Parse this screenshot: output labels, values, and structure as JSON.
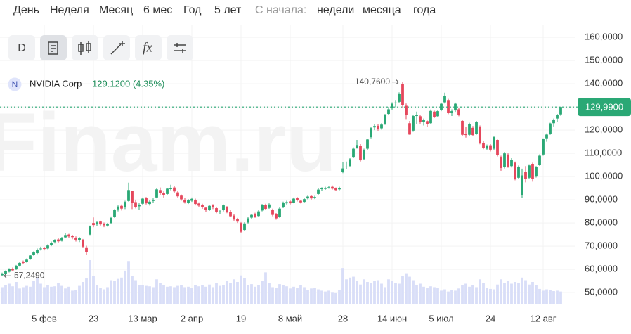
{
  "toolbar": {
    "periods": [
      "День",
      "Неделя",
      "Месяц",
      "6 мес",
      "Год",
      "5 лет"
    ],
    "since": "С начала:",
    "since_options": [
      "недели",
      "месяца",
      "года"
    ],
    "interval": "D"
  },
  "watermark": "Finam.ru",
  "chart_data": {
    "type": "candlestick",
    "instrument_icon": "N",
    "instrument": "NVIDIA Corp",
    "quote": "129.1200 (4.35%)",
    "up_color": "#2aa875",
    "down_color": "#e5475c",
    "volume_color": "#d9def8",
    "grid": true,
    "ylim": [
      45.2,
      165.5
    ],
    "yticks": [
      {
        "value": 50,
        "label": "50,0000"
      },
      {
        "value": 60,
        "label": "60,0000"
      },
      {
        "value": 70,
        "label": "70,0000"
      },
      {
        "value": 80,
        "label": "80,0000"
      },
      {
        "value": 90,
        "label": "90,0000"
      },
      {
        "value": 100,
        "label": "100,0000"
      },
      {
        "value": 110,
        "label": "110,0000"
      },
      {
        "value": 120,
        "label": "120,0000"
      },
      {
        "value": 130,
        "label": "130,0000"
      },
      {
        "value": 140,
        "label": "140,0000"
      },
      {
        "value": 150,
        "label": "150,0000"
      },
      {
        "value": 160,
        "label": "160,0000"
      }
    ],
    "xticks": [
      {
        "value": 12,
        "label": "5 фев"
      },
      {
        "value": 26,
        "label": "23"
      },
      {
        "value": 40,
        "label": "13 мар"
      },
      {
        "value": 54,
        "label": "2 апр"
      },
      {
        "value": 68,
        "label": "19"
      },
      {
        "value": 82,
        "label": "8 май"
      },
      {
        "value": 97,
        "label": "28"
      },
      {
        "value": 111,
        "label": "14 июн"
      },
      {
        "value": 125,
        "label": "5 июл"
      },
      {
        "value": 139,
        "label": "24"
      },
      {
        "value": 154,
        "label": "12 авг"
      }
    ],
    "last_label": "129,9900",
    "high_label": "140,7600",
    "low_label": "57,2490",
    "ohlc": [
      [
        57.5,
        58.6,
        57.249,
        58.0
      ],
      [
        58.2,
        59.6,
        57.9,
        59.2
      ],
      [
        59.0,
        60.5,
        58.7,
        60.1
      ],
      [
        60.3,
        60.8,
        59.2,
        59.6
      ],
      [
        60.0,
        61.9,
        59.8,
        61.5
      ],
      [
        61.6,
        63.2,
        61.2,
        62.8
      ],
      [
        63.1,
        63.8,
        62.4,
        63.0
      ],
      [
        63.3,
        64.7,
        62.9,
        64.2
      ],
      [
        64.5,
        66.4,
        64.1,
        66.0
      ],
      [
        66.2,
        67.8,
        65.9,
        67.3
      ],
      [
        67.0,
        69.0,
        66.6,
        68.5
      ],
      [
        68.7,
        69.8,
        68.1,
        69.0
      ],
      [
        69.3,
        69.7,
        68.2,
        68.8
      ],
      [
        69.0,
        70.8,
        68.7,
        70.3
      ],
      [
        70.4,
        72.0,
        70.0,
        71.5
      ],
      [
        71.8,
        73.0,
        71.2,
        72.6
      ],
      [
        72.9,
        73.4,
        71.6,
        72.1
      ],
      [
        72.3,
        74.0,
        72.0,
        73.5
      ],
      [
        73.8,
        75.5,
        73.4,
        74.8
      ],
      [
        75.0,
        75.3,
        73.7,
        74.2
      ],
      [
        74.4,
        74.9,
        73.0,
        73.9
      ],
      [
        73.6,
        74.2,
        72.0,
        72.8
      ],
      [
        72.5,
        73.9,
        71.8,
        73.4
      ],
      [
        72.8,
        73.1,
        69.2,
        69.8
      ],
      [
        69.5,
        70.2,
        66.2,
        67.5
      ],
      [
        75.0,
        78.9,
        74.8,
        78.5
      ],
      [
        80.0,
        82.4,
        78.2,
        79.1
      ],
      [
        79.4,
        80.9,
        78.6,
        80.3
      ],
      [
        80.6,
        81.0,
        78.9,
        79.4
      ],
      [
        79.7,
        80.2,
        78.2,
        79.0
      ],
      [
        78.9,
        80.0,
        78.4,
        79.5
      ],
      [
        80.0,
        82.8,
        79.6,
        82.2
      ],
      [
        82.5,
        86.0,
        82.2,
        85.6
      ],
      [
        85.9,
        87.6,
        85.0,
        87.1
      ],
      [
        87.4,
        88.0,
        85.4,
        86.2
      ],
      [
        86.7,
        89.6,
        86.0,
        89.1
      ],
      [
        89.5,
        97.4,
        89.2,
        94.2
      ],
      [
        93.8,
        94.0,
        86.0,
        88.6
      ],
      [
        89.0,
        90.1,
        86.3,
        87.0
      ],
      [
        87.2,
        88.5,
        85.8,
        87.9
      ],
      [
        88.3,
        91.0,
        87.8,
        90.5
      ],
      [
        90.8,
        91.2,
        88.0,
        88.5
      ],
      [
        88.2,
        89.8,
        87.5,
        89.2
      ],
      [
        89.5,
        90.6,
        88.6,
        90.0
      ],
      [
        91.0,
        95.0,
        90.6,
        94.5
      ],
      [
        94.2,
        95.3,
        92.2,
        92.8
      ],
      [
        93.0,
        93.6,
        91.0,
        92.0
      ],
      [
        92.5,
        95.2,
        92.1,
        94.8
      ],
      [
        94.6,
        96.5,
        94.1,
        95.0
      ],
      [
        95.3,
        95.8,
        93.0,
        93.6
      ],
      [
        93.2,
        93.8,
        91.0,
        91.5
      ],
      [
        91.8,
        92.3,
        89.6,
        90.2
      ],
      [
        90.0,
        90.9,
        88.4,
        89.0
      ],
      [
        88.8,
        90.3,
        88.2,
        89.8
      ],
      [
        89.6,
        91.0,
        89.1,
        90.4
      ],
      [
        90.0,
        90.5,
        87.6,
        88.2
      ],
      [
        88.4,
        88.9,
        86.8,
        87.5
      ],
      [
        87.8,
        88.3,
        86.1,
        86.9
      ],
      [
        86.6,
        87.0,
        84.8,
        85.5
      ],
      [
        85.8,
        87.9,
        85.2,
        87.4
      ],
      [
        87.6,
        88.1,
        86.0,
        86.7
      ],
      [
        86.4,
        86.9,
        84.2,
        84.9
      ],
      [
        84.6,
        85.6,
        84.0,
        85.0
      ],
      [
        85.5,
        88.0,
        85.0,
        87.6
      ],
      [
        87.0,
        87.3,
        84.2,
        84.7
      ],
      [
        84.8,
        85.5,
        82.5,
        82.9
      ],
      [
        83.2,
        83.8,
        81.0,
        81.5
      ],
      [
        81.8,
        82.2,
        80.0,
        80.6
      ],
      [
        80.0,
        80.4,
        75.6,
        76.2
      ],
      [
        77.0,
        80.3,
        76.6,
        79.8
      ],
      [
        80.2,
        82.6,
        79.8,
        82.0
      ],
      [
        82.3,
        84.0,
        81.7,
        83.5
      ],
      [
        84.0,
        84.4,
        82.2,
        82.7
      ],
      [
        83.0,
        85.6,
        82.6,
        85.0
      ],
      [
        85.4,
        88.2,
        85.0,
        87.7
      ],
      [
        87.9,
        88.3,
        85.6,
        86.1
      ],
      [
        86.5,
        88.5,
        86.1,
        88.0
      ],
      [
        85.8,
        86.2,
        82.9,
        83.5
      ],
      [
        83.8,
        84.3,
        81.4,
        82.0
      ],
      [
        82.5,
        86.8,
        82.2,
        86.2
      ],
      [
        86.8,
        89.2,
        86.4,
        88.7
      ],
      [
        88.5,
        89.6,
        88.0,
        89.0
      ],
      [
        89.3,
        89.7,
        88.0,
        88.5
      ],
      [
        88.8,
        91.0,
        88.5,
        90.5
      ],
      [
        90.7,
        91.2,
        89.3,
        89.8
      ],
      [
        89.6,
        90.0,
        88.4,
        88.9
      ],
      [
        89.1,
        90.8,
        88.8,
        90.3
      ],
      [
        90.6,
        91.8,
        90.2,
        91.4
      ],
      [
        91.6,
        92.0,
        90.1,
        90.6
      ],
      [
        90.7,
        91.7,
        90.3,
        91.2
      ],
      [
        92.5,
        95.0,
        92.2,
        94.4
      ],
      [
        94.6,
        95.4,
        94.0,
        94.9
      ],
      [
        94.7,
        95.6,
        94.3,
        95.2
      ],
      [
        95.0,
        96.0,
        94.8,
        95.4
      ],
      [
        95.6,
        96.2,
        94.4,
        94.8
      ],
      [
        94.9,
        95.3,
        93.8,
        94.2
      ],
      [
        94.5,
        95.6,
        94.1,
        95.0
      ],
      [
        102.0,
        106.3,
        101.5,
        103.5
      ],
      [
        104.0,
        106.5,
        103.2,
        104.3
      ],
      [
        104.6,
        108.0,
        104.0,
        107.5
      ],
      [
        108.5,
        112.6,
        108.0,
        112.0
      ],
      [
        112.4,
        115.8,
        112.0,
        113.6
      ],
      [
        113.2,
        114.0,
        106.5,
        107.0
      ],
      [
        107.5,
        112.0,
        107.0,
        111.4
      ],
      [
        112.0,
        116.4,
        111.5,
        116.0
      ],
      [
        117.0,
        121.5,
        116.5,
        120.9
      ],
      [
        121.2,
        122.5,
        120.0,
        121.8
      ],
      [
        121.9,
        122.6,
        119.8,
        120.5
      ],
      [
        120.8,
        123.0,
        120.2,
        122.4
      ],
      [
        122.8,
        127.0,
        122.3,
        126.6
      ],
      [
        127.0,
        130.0,
        126.5,
        129.0
      ],
      [
        129.4,
        132.0,
        128.8,
        131.4
      ],
      [
        131.8,
        133.0,
        129.9,
        131.9
      ],
      [
        132.2,
        136.3,
        131.8,
        135.6
      ],
      [
        139.8,
        140.76,
        129.5,
        130.8
      ],
      [
        130.5,
        131.5,
        124.8,
        126.6
      ],
      [
        123.0,
        124.0,
        118.0,
        118.1
      ],
      [
        119.8,
        126.5,
        119.3,
        126.1
      ],
      [
        126.2,
        128.0,
        122.6,
        126.4
      ],
      [
        126.0,
        126.5,
        122.8,
        123.5
      ],
      [
        123.5,
        125.0,
        122.0,
        124.3
      ],
      [
        123.9,
        124.2,
        121.3,
        122.7
      ],
      [
        123.0,
        128.9,
        122.6,
        128.3
      ],
      [
        128.0,
        128.4,
        125.2,
        125.8
      ],
      [
        126.0,
        128.6,
        125.5,
        128.2
      ],
      [
        128.6,
        131.9,
        128.2,
        131.4
      ],
      [
        132.0,
        136.2,
        131.5,
        134.9
      ],
      [
        133.0,
        133.5,
        126.9,
        127.4
      ],
      [
        127.5,
        129.0,
        126.1,
        128.2
      ],
      [
        128.5,
        131.9,
        127.9,
        131.4
      ],
      [
        129.0,
        129.5,
        126.0,
        126.4
      ],
      [
        124.0,
        124.5,
        117.6,
        118.0
      ],
      [
        118.5,
        121.5,
        116.8,
        117.9
      ],
      [
        118.0,
        123.2,
        117.5,
        122.6
      ],
      [
        121.0,
        121.8,
        117.4,
        117.9
      ],
      [
        118.3,
        124.0,
        118.0,
        123.5
      ],
      [
        121.5,
        122.0,
        113.9,
        114.3
      ],
      [
        114.6,
        115.2,
        111.8,
        112.3
      ],
      [
        112.0,
        113.8,
        111.3,
        113.1
      ],
      [
        113.5,
        114.0,
        110.8,
        111.6
      ],
      [
        112.0,
        117.5,
        111.5,
        117.0
      ],
      [
        115.8,
        116.0,
        108.7,
        109.2
      ],
      [
        108.5,
        109.0,
        102.5,
        103.7
      ],
      [
        104.0,
        110.6,
        103.5,
        110.0
      ],
      [
        109.5,
        110.0,
        103.8,
        104.3
      ],
      [
        104.5,
        108.2,
        103.9,
        107.3
      ],
      [
        106.0,
        106.5,
        98.4,
        98.9
      ],
      [
        99.5,
        104.8,
        99.0,
        104.3
      ],
      [
        92.1,
        103.4,
        90.69,
        100.5
      ],
      [
        102.0,
        104.5,
        97.5,
        98.9
      ],
      [
        99.5,
        105.3,
        99.0,
        104.8
      ],
      [
        105.5,
        106.0,
        97.8,
        98.9
      ],
      [
        100.0,
        104.5,
        99.6,
        104.2
      ],
      [
        105.0,
        109.6,
        104.6,
        109.0
      ],
      [
        109.5,
        116.5,
        109.0,
        116.1
      ],
      [
        116.5,
        118.6,
        115.0,
        118.1
      ],
      [
        118.5,
        123.2,
        118.0,
        122.9
      ],
      [
        123.0,
        125.0,
        121.6,
        124.6
      ],
      [
        125.0,
        127.0,
        123.5,
        126.5
      ],
      [
        126.8,
        130.2,
        126.2,
        129.99
      ]
    ],
    "volume": [
      380,
      420,
      460,
      400,
      500,
      350,
      380,
      410,
      390,
      520,
      600,
      460,
      380,
      420,
      390,
      400,
      470,
      410,
      350,
      390,
      300,
      320,
      410,
      500,
      580,
      1000,
      640,
      420,
      360,
      330,
      380,
      540,
      520,
      570,
      600,
      760,
      980,
      640,
      540,
      420,
      430,
      410,
      400,
      380,
      560,
      480,
      420,
      390,
      400,
      380,
      410,
      430,
      380,
      390,
      360,
      430,
      400,
      420,
      390,
      440,
      380,
      470,
      410,
      430,
      520,
      480,
      560,
      500,
      650,
      590,
      430,
      450,
      390,
      420,
      530,
      720,
      480,
      380,
      360,
      450,
      430,
      400,
      350,
      390,
      360,
      420,
      380,
      310,
      350,
      360,
      330,
      300,
      280,
      300,
      270,
      260,
      320,
      820,
      560,
      600,
      620,
      520,
      440,
      560,
      500,
      480,
      520,
      540,
      460,
      380,
      560,
      520,
      480,
      460,
      640,
      700,
      620,
      540,
      420,
      460,
      390,
      360,
      400,
      380,
      360,
      300,
      330,
      280,
      310,
      300,
      350,
      430,
      460,
      390,
      420,
      380,
      560,
      470,
      360,
      340,
      330,
      440,
      560,
      480,
      520,
      460,
      500,
      480,
      600,
      540,
      440,
      500,
      430,
      340,
      300,
      330,
      310,
      290,
      300,
      280
    ]
  }
}
